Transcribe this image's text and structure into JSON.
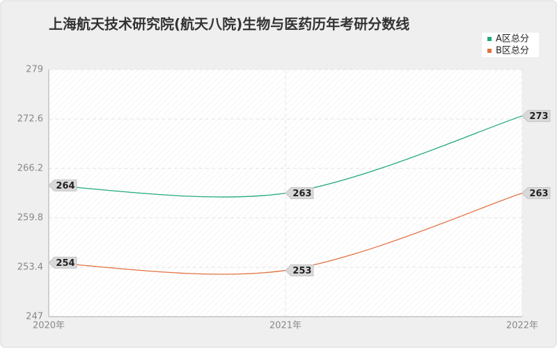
{
  "chart_data": {
    "type": "line",
    "title": "上海航天技术研究院(航天八院)生物与医药历年考研分数线",
    "categories": [
      "2020年",
      "2021年",
      "2022年"
    ],
    "series": [
      {
        "name": "A区总分",
        "color": "#1fa97c",
        "values": [
          264,
          263,
          273
        ]
      },
      {
        "name": "B区总分",
        "color": "#e2703f",
        "values": [
          254,
          253,
          263
        ]
      }
    ],
    "ylim": [
      247,
      279
    ],
    "yticks": [
      247,
      253.4,
      259.8,
      266.2,
      272.6,
      279
    ],
    "grid": true,
    "legend": "top-right",
    "smooth": true
  }
}
